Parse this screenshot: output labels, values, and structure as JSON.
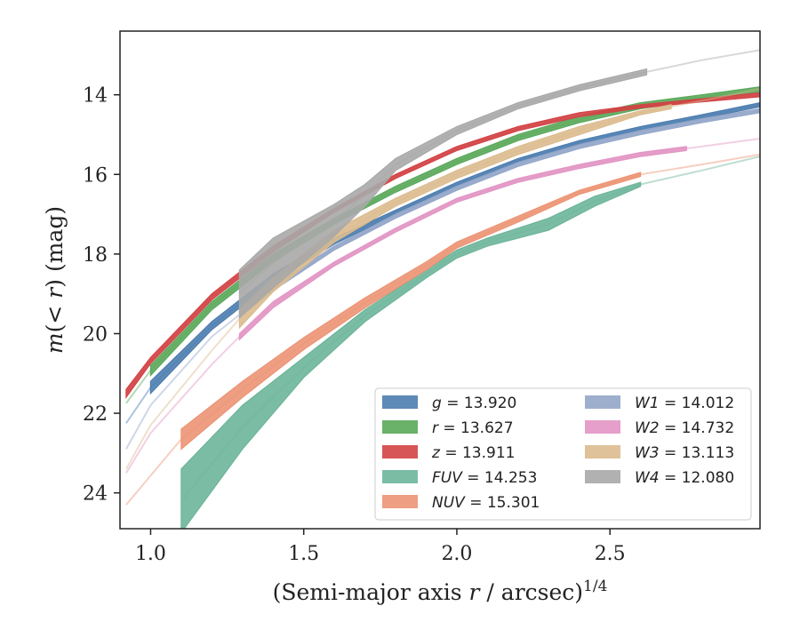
{
  "chart_data": {
    "type": "line",
    "xlabel_main": "(Semi-major axis ",
    "xlabel_var": "r",
    "xlabel_rest": " / arcsec)",
    "xlabel_exp": "1/4",
    "ylabel_main": "m",
    "ylabel_paren": "(< ",
    "ylabel_var": "r",
    "ylabel_tail": ") (mag)",
    "xlim": [
      0.9,
      2.99
    ],
    "ylim": [
      24.9,
      12.4
    ],
    "y_inverted": true,
    "x_ticks": [
      {
        "value": 1.0,
        "label": "1.0"
      },
      {
        "value": 1.5,
        "label": "1.5"
      },
      {
        "value": 2.0,
        "label": "2.0"
      },
      {
        "value": 2.5,
        "label": "2.5"
      }
    ],
    "y_ticks": [
      {
        "value": 14,
        "label": "14"
      },
      {
        "value": 16,
        "label": "16"
      },
      {
        "value": 18,
        "label": "18"
      },
      {
        "value": 20,
        "label": "20"
      },
      {
        "value": 22,
        "label": "22"
      },
      {
        "value": 24,
        "label": "24"
      }
    ],
    "grid": false,
    "legend_position": "lower-right",
    "legend_columns": 2,
    "series": [
      {
        "key": "g",
        "name": "g",
        "value": "13.920",
        "color": "#4c7daf",
        "x": [
          0.92,
          1.0,
          1.2,
          1.4,
          1.6,
          1.8,
          2.0,
          2.2,
          2.4,
          2.6,
          2.8,
          2.99
        ],
        "lo": [
          22.1,
          21.2,
          19.7,
          18.5,
          17.6,
          16.9,
          16.2,
          15.6,
          15.15,
          14.8,
          14.5,
          14.2
        ],
        "hi": [
          22.4,
          21.5,
          19.9,
          18.7,
          17.75,
          17.0,
          16.3,
          15.7,
          15.25,
          14.9,
          14.6,
          14.3
        ],
        "solid_x": [
          1.0,
          2.99
        ]
      },
      {
        "key": "r",
        "name": "r",
        "value": "13.627",
        "color": "#5aa85a",
        "x": [
          0.92,
          1.0,
          1.2,
          1.4,
          1.6,
          1.8,
          2.0,
          2.2,
          2.4,
          2.6,
          2.8,
          2.99
        ],
        "lo": [
          21.6,
          20.8,
          19.2,
          18.0,
          17.1,
          16.3,
          15.6,
          15.0,
          14.55,
          14.2,
          14.0,
          13.8
        ],
        "hi": [
          21.9,
          21.05,
          19.4,
          18.2,
          17.25,
          16.45,
          15.75,
          15.15,
          14.7,
          14.35,
          14.12,
          13.95
        ],
        "solid_x": [
          1.0,
          2.99
        ]
      },
      {
        "key": "z",
        "name": "z",
        "value": "13.911",
        "color": "#d34245",
        "x": [
          0.92,
          1.0,
          1.2,
          1.4,
          1.6,
          1.8,
          2.0,
          2.2,
          2.4,
          2.6,
          2.8,
          2.99
        ],
        "lo": [
          21.4,
          20.6,
          19.0,
          17.8,
          16.85,
          16.0,
          15.3,
          14.8,
          14.45,
          14.25,
          14.1,
          13.95
        ],
        "hi": [
          21.6,
          20.75,
          19.15,
          17.95,
          16.95,
          16.1,
          15.4,
          14.9,
          14.55,
          14.33,
          14.18,
          14.05
        ],
        "solid_x": [
          0.92,
          2.99
        ]
      },
      {
        "key": "FUV",
        "name": "FUV",
        "value": "14.253",
        "color": "#6db59a",
        "x": [
          1.1,
          1.3,
          1.5,
          1.7,
          1.9,
          2.0,
          2.1,
          2.3,
          2.45,
          2.6,
          2.8,
          2.99
        ],
        "lo": [
          23.4,
          21.8,
          20.6,
          19.4,
          18.4,
          17.9,
          17.6,
          17.1,
          16.55,
          16.2,
          15.85,
          15.5
        ],
        "hi": [
          25.0,
          22.9,
          21.1,
          19.7,
          18.6,
          18.1,
          17.8,
          17.4,
          16.8,
          16.3,
          15.95,
          15.6
        ],
        "solid_x": [
          1.1,
          2.6
        ]
      },
      {
        "key": "NUV",
        "name": "NUV",
        "value": "15.301",
        "color": "#ec9474",
        "x": [
          0.92,
          1.1,
          1.3,
          1.5,
          1.7,
          1.9,
          2.0,
          2.2,
          2.4,
          2.6,
          2.8,
          2.99
        ],
        "lo": [
          24.2,
          22.4,
          21.2,
          20.1,
          19.1,
          18.2,
          17.7,
          17.05,
          16.4,
          15.95,
          15.7,
          15.45
        ],
        "hi": [
          24.4,
          22.9,
          21.6,
          20.4,
          19.35,
          18.4,
          17.85,
          17.2,
          16.5,
          16.05,
          15.8,
          15.55
        ],
        "solid_x": [
          1.1,
          2.6
        ]
      },
      {
        "key": "W1",
        "name": "W1",
        "value": "14.012",
        "color": "#93a6c9",
        "x": [
          0.92,
          1.0,
          1.2,
          1.4,
          1.6,
          1.8,
          2.0,
          2.2,
          2.4,
          2.6,
          2.8,
          2.99
        ],
        "lo": [
          22.8,
          21.7,
          20.0,
          18.8,
          17.8,
          17.0,
          16.3,
          15.7,
          15.25,
          14.9,
          14.6,
          14.35
        ],
        "hi": [
          23.0,
          21.9,
          20.15,
          18.92,
          17.9,
          17.1,
          16.4,
          15.8,
          15.35,
          15.0,
          14.7,
          14.45
        ],
        "solid_x": [
          1.3,
          2.99
        ]
      },
      {
        "key": "W2",
        "name": "W2",
        "value": "14.732",
        "color": "#e295c4",
        "x": [
          0.92,
          1.0,
          1.2,
          1.29,
          1.4,
          1.6,
          1.8,
          2.0,
          2.2,
          2.4,
          2.6,
          2.8,
          2.99
        ],
        "lo": [
          23.4,
          22.4,
          20.7,
          20.0,
          19.2,
          18.2,
          17.35,
          16.6,
          16.1,
          15.75,
          15.45,
          15.25,
          15.05
        ],
        "hi": [
          23.6,
          22.6,
          20.85,
          20.15,
          19.35,
          18.3,
          17.45,
          16.7,
          16.2,
          15.85,
          15.55,
          15.35,
          15.15
        ],
        "solid_x": [
          1.29,
          2.75
        ]
      },
      {
        "key": "W3",
        "name": "W3",
        "value": "13.113",
        "color": "#dcbb8e",
        "x": [
          0.92,
          1.0,
          1.2,
          1.29,
          1.4,
          1.6,
          1.8,
          2.0,
          2.2,
          2.4,
          2.6,
          2.8,
          2.99
        ],
        "lo": [
          23.3,
          22.2,
          20.3,
          19.4,
          18.6,
          17.4,
          16.6,
          15.9,
          15.3,
          14.8,
          14.4,
          14.1,
          13.8
        ],
        "hi": [
          23.5,
          22.4,
          20.55,
          19.85,
          18.95,
          17.7,
          16.8,
          16.1,
          15.5,
          15.0,
          14.5,
          14.2,
          13.9
        ],
        "solid_x": [
          1.29,
          2.7
        ]
      },
      {
        "key": "W4",
        "name": "W4",
        "value": "12.080",
        "color": "#a9a9a9",
        "x": [
          1.29,
          1.4,
          1.6,
          1.7,
          1.8,
          2.0,
          2.2,
          2.4,
          2.62,
          2.8,
          2.99
        ],
        "lo": [
          18.4,
          17.6,
          16.75,
          16.25,
          15.6,
          14.8,
          14.2,
          13.75,
          13.35,
          13.1,
          12.85
        ],
        "hi": [
          19.6,
          18.85,
          17.55,
          16.8,
          15.9,
          15.0,
          14.35,
          13.9,
          13.5,
          13.16,
          12.9
        ],
        "solid_x": [
          1.29,
          2.62
        ]
      }
    ]
  }
}
